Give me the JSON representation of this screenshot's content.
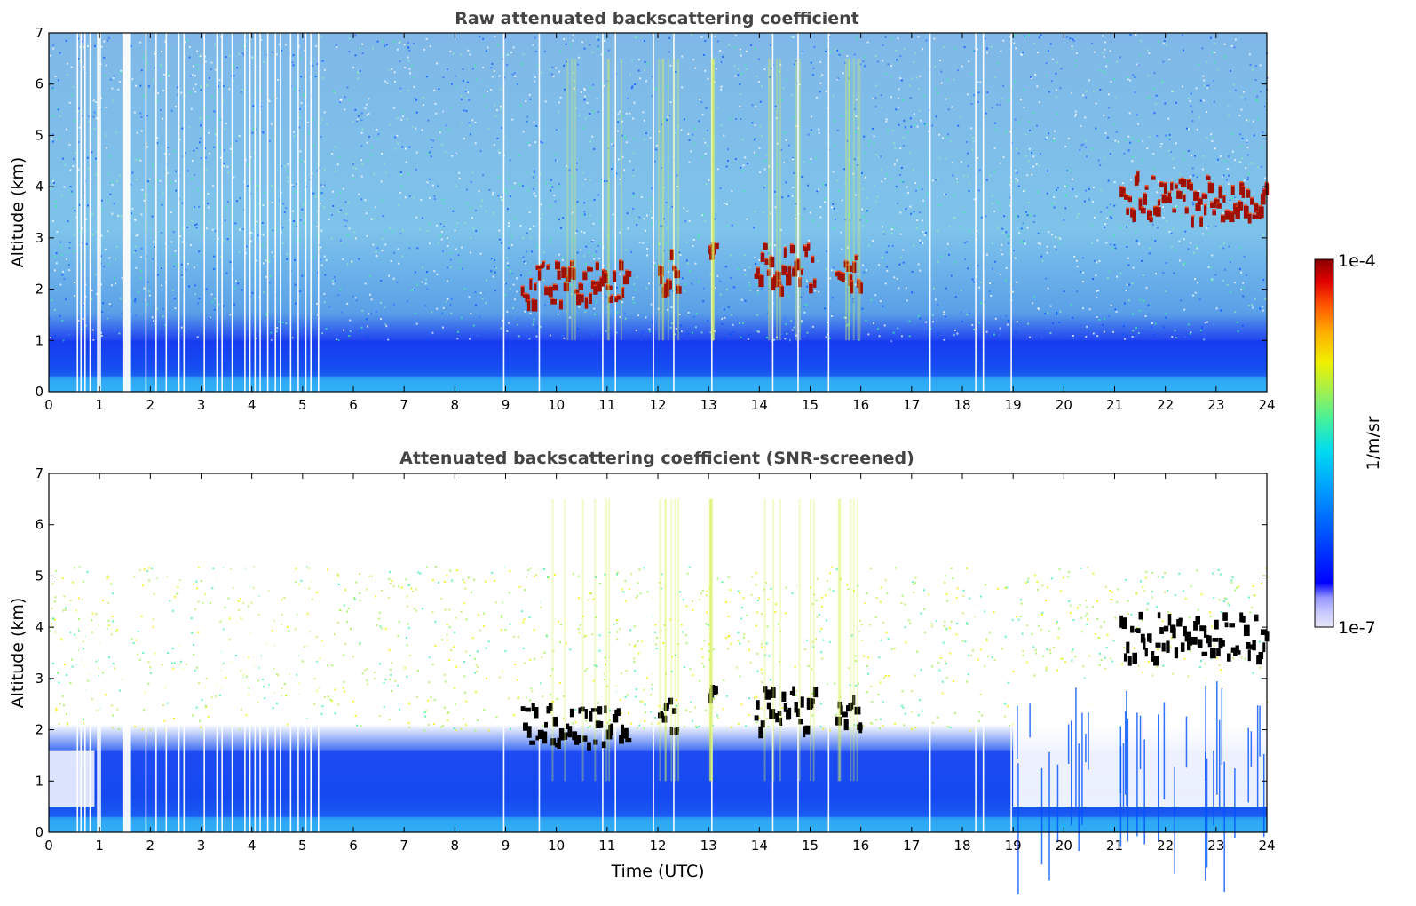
{
  "chart_data": [
    {
      "type": "heatmap",
      "title": "Raw attenuated backscattering coefficient",
      "xlabel": "",
      "ylabel": "Altitude (km)",
      "xlim": [
        0,
        24
      ],
      "ylim": [
        0,
        7
      ],
      "xticks": [
        "0",
        "1",
        "2",
        "3",
        "4",
        "5",
        "6",
        "7",
        "8",
        "9",
        "10",
        "11",
        "12",
        "13",
        "14",
        "15",
        "16",
        "17",
        "18",
        "19",
        "20",
        "21",
        "22",
        "23",
        "24"
      ],
      "yticks": [
        "0",
        "1",
        "2",
        "3",
        "4",
        "5",
        "6",
        "7"
      ],
      "features": {
        "boundary_layer_top_km": 1.0,
        "cloud_patches": [
          {
            "t_start": 9.3,
            "t_end": 11.4,
            "alt_low": 1.7,
            "alt_high": 2.6
          },
          {
            "t_start": 12.0,
            "t_end": 12.4,
            "alt_low": 2.0,
            "alt_high": 2.8
          },
          {
            "t_start": 13.0,
            "t_end": 13.1,
            "alt_low": 2.7,
            "alt_high": 3.0
          },
          {
            "t_start": 13.9,
            "t_end": 15.1,
            "alt_low": 2.05,
            "alt_high": 2.9
          },
          {
            "t_start": 15.5,
            "t_end": 16.0,
            "alt_low": 2.1,
            "alt_high": 2.7
          },
          {
            "t_start": 21.1,
            "t_end": 24.0,
            "alt_low": 3.4,
            "alt_high": 4.3
          }
        ]
      }
    },
    {
      "type": "heatmap",
      "title": "Attenuated backscattering coefficient (SNR-screened)",
      "xlabel": "Time (UTC)",
      "ylabel": "Altitude (km)",
      "xlim": [
        0,
        24
      ],
      "ylim": [
        0,
        7
      ],
      "xticks": [
        "0",
        "1",
        "2",
        "3",
        "4",
        "5",
        "6",
        "7",
        "8",
        "9",
        "10",
        "11",
        "12",
        "13",
        "14",
        "15",
        "16",
        "17",
        "18",
        "19",
        "20",
        "21",
        "22",
        "23",
        "24"
      ],
      "yticks": [
        "0",
        "1",
        "2",
        "3",
        "4",
        "5",
        "6",
        "7"
      ],
      "features": {
        "boundary_layer_top_km": 1.6,
        "cloud_patches": [
          {
            "t_start": 9.3,
            "t_end": 11.4,
            "alt_low": 1.7,
            "alt_high": 2.6
          },
          {
            "t_start": 12.0,
            "t_end": 12.4,
            "alt_low": 2.0,
            "alt_high": 2.8
          },
          {
            "t_start": 13.0,
            "t_end": 13.1,
            "alt_low": 2.7,
            "alt_high": 3.0
          },
          {
            "t_start": 13.9,
            "t_end": 15.1,
            "alt_low": 2.05,
            "alt_high": 2.9
          },
          {
            "t_start": 15.5,
            "t_end": 16.0,
            "alt_low": 2.1,
            "alt_high": 2.7
          },
          {
            "t_start": 21.1,
            "t_end": 24.0,
            "alt_low": 3.4,
            "alt_high": 4.3
          }
        ]
      }
    }
  ],
  "colorbar": {
    "label": "1/m/sr",
    "max_label": "1e-4",
    "min_label": "1e-7",
    "colors": [
      "#e6e6f5",
      "#c8c8ff",
      "#9696ff",
      "#0000ff",
      "#0050ff",
      "#00a0ff",
      "#00dcf0",
      "#40f0a0",
      "#a0f050",
      "#f0f000",
      "#ffb000",
      "#ff5000",
      "#e00000",
      "#8c0000"
    ]
  }
}
